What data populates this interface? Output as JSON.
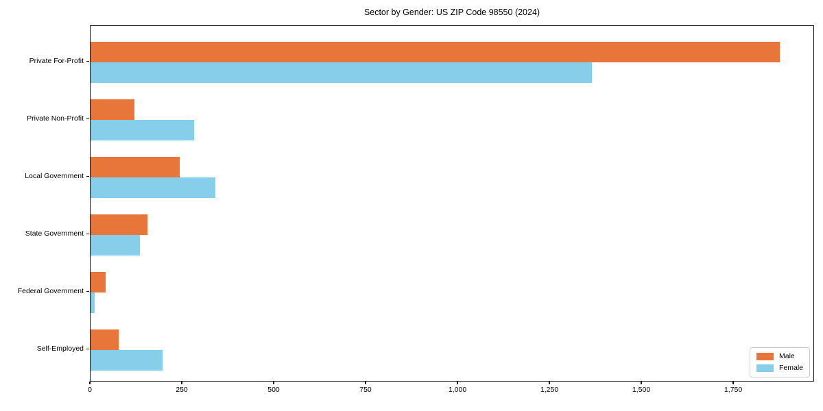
{
  "figure": {
    "title": "Sector by Gender: US ZIP Code 98550 (2024)"
  },
  "chart_data": {
    "type": "bar",
    "orientation": "horizontal",
    "title": "Sector by Gender: US ZIP Code 98550 (2024)",
    "categories": [
      "Private For-Profit",
      "Private Non-Profit",
      "Local Government",
      "State Government",
      "Federal Government",
      "Self-Employed"
    ],
    "series": [
      {
        "name": "Male",
        "color": "#e8763a",
        "values": [
          1875,
          120,
          242,
          155,
          41,
          76
        ]
      },
      {
        "name": "Female",
        "color": "#87ceeb",
        "values": [
          1364,
          282,
          339,
          135,
          12,
          195
        ]
      }
    ],
    "xlabel": "",
    "ylabel": "",
    "xlim": [
      0,
      1970
    ],
    "x_ticks": [
      0,
      250,
      500,
      750,
      1000,
      1250,
      1500,
      1750
    ],
    "x_tick_labels": [
      "0",
      "250",
      "500",
      "750",
      "1,000",
      "1,250",
      "1,500",
      "1,750"
    ],
    "grid": false,
    "legend": {
      "position": "lower right",
      "entries": [
        "Male",
        "Female"
      ]
    }
  }
}
